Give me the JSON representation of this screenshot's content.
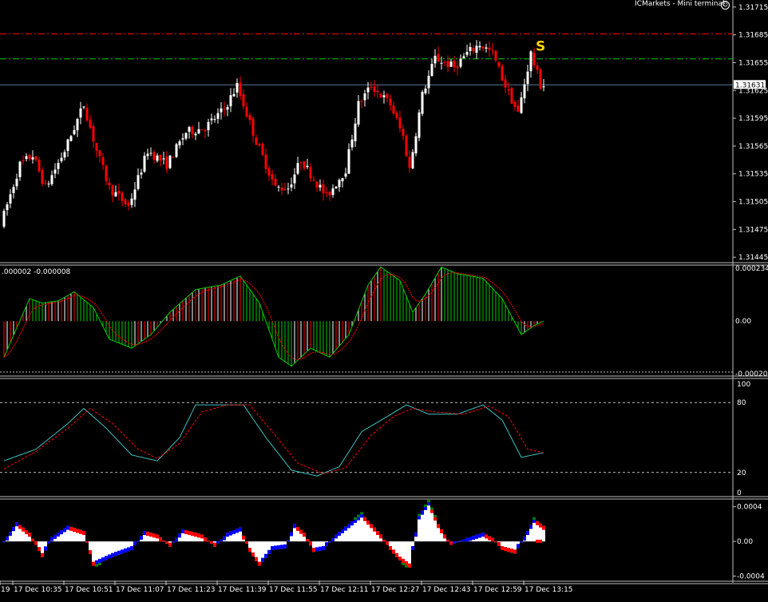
{
  "window": {
    "terminal_label": "ICMarkets - Mini terminal",
    "smiley_glyph": "☺"
  },
  "colors": {
    "background": "#000000",
    "bull": "#ffffff",
    "bear": "#ff0000",
    "red_level": "#ff0000",
    "green_level": "#00cc00",
    "price_line": "#5b7a9c",
    "macd_main": "#00cc00",
    "macd_signal": "#ff0000",
    "stoch_main": "#40c0c0",
    "stoch_signal": "#ff0000",
    "ao_up": "#0000ff",
    "ao_down": "#ff0000",
    "ao_extreme": "#008000",
    "ao_body": "#ffffff",
    "marker": "#ffd700"
  },
  "price_panel": {
    "current_price_label": "1.31631",
    "marker_text": "S",
    "y_ticks": [
      "1.31715",
      "1.31685",
      "1.31655",
      "1.31625",
      "1.31595",
      "1.31565",
      "1.31535",
      "1.31505",
      "1.31475",
      "1.31445"
    ]
  },
  "macd_panel": {
    "info_label": ".000002 -0.000008",
    "y_ticks": [
      "0.000234",
      "0.00",
      "-0.00020"
    ]
  },
  "stoch_panel": {
    "y_ticks": [
      "100",
      "80",
      "20",
      "0"
    ]
  },
  "ao_panel": {
    "y_ticks": [
      "0.0004",
      "0.00",
      "-0.0004"
    ]
  },
  "x_axis": {
    "labels": [
      "19",
      "17 Dec 10:35",
      "17 Dec 10:51",
      "17 Dec 11:07",
      "17 Dec 11:23",
      "17 Dec 11:39",
      "17 Dec 11:55",
      "17 Dec 12:11",
      "17 Dec 12:27",
      "17 Dec 12:43",
      "17 Dec 12:59",
      "17 Dec 13:15"
    ]
  },
  "chart_data": {
    "type": "candlestick",
    "instrument_timeframe": "1-minute",
    "bars_count": 170,
    "price_keypoints": [
      {
        "bar": 0,
        "price": 1.3148
      },
      {
        "bar": 6,
        "price": 1.31545
      },
      {
        "bar": 10,
        "price": 1.31555
      },
      {
        "bar": 14,
        "price": 1.3152
      },
      {
        "bar": 20,
        "price": 1.3156
      },
      {
        "bar": 26,
        "price": 1.3161
      },
      {
        "bar": 30,
        "price": 1.3156
      },
      {
        "bar": 34,
        "price": 1.3152
      },
      {
        "bar": 40,
        "price": 1.315
      },
      {
        "bar": 46,
        "price": 1.3156
      },
      {
        "bar": 52,
        "price": 1.31545
      },
      {
        "bar": 58,
        "price": 1.3158
      },
      {
        "bar": 64,
        "price": 1.31585
      },
      {
        "bar": 70,
        "price": 1.31605
      },
      {
        "bar": 74,
        "price": 1.3163
      },
      {
        "bar": 80,
        "price": 1.3157
      },
      {
        "bar": 86,
        "price": 1.3152
      },
      {
        "bar": 90,
        "price": 1.3152
      },
      {
        "bar": 94,
        "price": 1.3155
      },
      {
        "bar": 98,
        "price": 1.3153
      },
      {
        "bar": 102,
        "price": 1.3151
      },
      {
        "bar": 108,
        "price": 1.3154
      },
      {
        "bar": 112,
        "price": 1.3161
      },
      {
        "bar": 116,
        "price": 1.3163
      },
      {
        "bar": 122,
        "price": 1.3161
      },
      {
        "bar": 126,
        "price": 1.31575
      },
      {
        "bar": 128,
        "price": 1.3154
      },
      {
        "bar": 132,
        "price": 1.3162
      },
      {
        "bar": 136,
        "price": 1.3166
      },
      {
        "bar": 142,
        "price": 1.3165
      },
      {
        "bar": 146,
        "price": 1.31665
      },
      {
        "bar": 150,
        "price": 1.31675
      },
      {
        "bar": 154,
        "price": 1.31665
      },
      {
        "bar": 158,
        "price": 1.3163
      },
      {
        "bar": 162,
        "price": 1.316
      },
      {
        "bar": 166,
        "price": 1.31665
      },
      {
        "bar": 169,
        "price": 1.31631
      }
    ],
    "levels": {
      "red_dashdot": 1.31686,
      "green_dashdot": 1.31659,
      "current": 1.31631
    },
    "price_range": [
      1.3144,
      1.3172
    ],
    "macd_range": [
      -0.00024,
      0.000245
    ],
    "macd_keypoints": [
      {
        "bar": 0,
        "value": -0.00016
      },
      {
        "bar": 8,
        "value": 0.0001
      },
      {
        "bar": 12,
        "value": 8e-05
      },
      {
        "bar": 17,
        "value": 9e-05
      },
      {
        "bar": 22,
        "value": 0.00013
      },
      {
        "bar": 28,
        "value": 6e-05
      },
      {
        "bar": 33,
        "value": -8e-05
      },
      {
        "bar": 40,
        "value": -0.00012
      },
      {
        "bar": 46,
        "value": -6e-05
      },
      {
        "bar": 52,
        "value": 4e-05
      },
      {
        "bar": 60,
        "value": 0.00014
      },
      {
        "bar": 68,
        "value": 0.00016
      },
      {
        "bar": 74,
        "value": 0.0002
      },
      {
        "bar": 80,
        "value": 8e-05
      },
      {
        "bar": 86,
        "value": -0.00016
      },
      {
        "bar": 90,
        "value": -0.0002
      },
      {
        "bar": 96,
        "value": -0.00012
      },
      {
        "bar": 102,
        "value": -0.00016
      },
      {
        "bar": 108,
        "value": -6e-05
      },
      {
        "bar": 114,
        "value": 0.00016
      },
      {
        "bar": 118,
        "value": 0.00024
      },
      {
        "bar": 124,
        "value": 0.00018
      },
      {
        "bar": 128,
        "value": 4e-05
      },
      {
        "bar": 132,
        "value": 0.00012
      },
      {
        "bar": 137,
        "value": 0.00024
      },
      {
        "bar": 142,
        "value": 0.00021
      },
      {
        "bar": 150,
        "value": 0.00019
      },
      {
        "bar": 156,
        "value": 0.0001
      },
      {
        "bar": 162,
        "value": -6e-05
      },
      {
        "bar": 166,
        "value": -2e-05
      },
      {
        "bar": 169,
        "value": 0.0
      }
    ],
    "stoch_range": [
      0,
      100
    ],
    "stoch_levels": [
      80,
      20
    ],
    "stoch_main": [
      {
        "bar": 0,
        "value": 30
      },
      {
        "bar": 10,
        "value": 40
      },
      {
        "bar": 20,
        "value": 62
      },
      {
        "bar": 25,
        "value": 75
      },
      {
        "bar": 32,
        "value": 58
      },
      {
        "bar": 40,
        "value": 35
      },
      {
        "bar": 48,
        "value": 30
      },
      {
        "bar": 55,
        "value": 50
      },
      {
        "bar": 60,
        "value": 78
      },
      {
        "bar": 68,
        "value": 78
      },
      {
        "bar": 75,
        "value": 78
      },
      {
        "bar": 82,
        "value": 50
      },
      {
        "bar": 90,
        "value": 22
      },
      {
        "bar": 98,
        "value": 17
      },
      {
        "bar": 105,
        "value": 25
      },
      {
        "bar": 112,
        "value": 55
      },
      {
        "bar": 120,
        "value": 68
      },
      {
        "bar": 126,
        "value": 78
      },
      {
        "bar": 133,
        "value": 70
      },
      {
        "bar": 142,
        "value": 70
      },
      {
        "bar": 150,
        "value": 78
      },
      {
        "bar": 156,
        "value": 65
      },
      {
        "bar": 162,
        "value": 33
      },
      {
        "bar": 169,
        "value": 37
      }
    ],
    "stoch_signal": [
      {
        "bar": 0,
        "value": 23
      },
      {
        "bar": 10,
        "value": 38
      },
      {
        "bar": 20,
        "value": 58
      },
      {
        "bar": 27,
        "value": 75
      },
      {
        "bar": 34,
        "value": 62
      },
      {
        "bar": 42,
        "value": 40
      },
      {
        "bar": 48,
        "value": 32
      },
      {
        "bar": 55,
        "value": 45
      },
      {
        "bar": 62,
        "value": 72
      },
      {
        "bar": 70,
        "value": 78
      },
      {
        "bar": 77,
        "value": 78
      },
      {
        "bar": 84,
        "value": 55
      },
      {
        "bar": 92,
        "value": 28
      },
      {
        "bar": 100,
        "value": 19
      },
      {
        "bar": 107,
        "value": 24
      },
      {
        "bar": 115,
        "value": 52
      },
      {
        "bar": 122,
        "value": 68
      },
      {
        "bar": 128,
        "value": 75
      },
      {
        "bar": 135,
        "value": 72
      },
      {
        "bar": 144,
        "value": 70
      },
      {
        "bar": 152,
        "value": 77
      },
      {
        "bar": 158,
        "value": 68
      },
      {
        "bar": 164,
        "value": 40
      },
      {
        "bar": 169,
        "value": 37
      }
    ],
    "ao_range": [
      -0.00045,
      0.00048
    ],
    "ao_keypoints": [
      {
        "bar": 0,
        "value": 0.0
      },
      {
        "bar": 4,
        "value": 0.00022
      },
      {
        "bar": 8,
        "value": 0.0001
      },
      {
        "bar": 12,
        "value": -0.00018
      },
      {
        "bar": 15,
        "value": 5e-05
      },
      {
        "bar": 20,
        "value": 0.00018
      },
      {
        "bar": 25,
        "value": 0.00012
      },
      {
        "bar": 28,
        "value": -0.00028
      },
      {
        "bar": 34,
        "value": -0.00018
      },
      {
        "bar": 40,
        "value": -0.0001
      },
      {
        "bar": 44,
        "value": 0.00012
      },
      {
        "bar": 48,
        "value": 8e-05
      },
      {
        "bar": 52,
        "value": -6e-05
      },
      {
        "bar": 56,
        "value": 0.00014
      },
      {
        "bar": 62,
        "value": 8e-05
      },
      {
        "bar": 66,
        "value": -6e-05
      },
      {
        "bar": 70,
        "value": 0.0001
      },
      {
        "bar": 74,
        "value": 0.00016
      },
      {
        "bar": 77,
        "value": -0.00012
      },
      {
        "bar": 80,
        "value": -0.00028
      },
      {
        "bar": 84,
        "value": -0.0001
      },
      {
        "bar": 88,
        "value": -8e-05
      },
      {
        "bar": 91,
        "value": 0.0002
      },
      {
        "bar": 94,
        "value": 0.0001
      },
      {
        "bar": 97,
        "value": -0.00012
      },
      {
        "bar": 100,
        "value": -0.0001
      },
      {
        "bar": 104,
        "value": 8e-05
      },
      {
        "bar": 108,
        "value": 0.0002
      },
      {
        "bar": 112,
        "value": 0.00032
      },
      {
        "bar": 115,
        "value": 0.0002
      },
      {
        "bar": 118,
        "value": 8e-05
      },
      {
        "bar": 121,
        "value": -0.0001
      },
      {
        "bar": 124,
        "value": -0.00022
      },
      {
        "bar": 127,
        "value": -0.0003
      },
      {
        "bar": 130,
        "value": 0.0003
      },
      {
        "bar": 133,
        "value": 0.00046
      },
      {
        "bar": 136,
        "value": 0.0002
      },
      {
        "bar": 140,
        "value": -4e-05
      },
      {
        "bar": 145,
        "value": 4e-05
      },
      {
        "bar": 150,
        "value": 0.0001
      },
      {
        "bar": 153,
        "value": 4e-05
      },
      {
        "bar": 156,
        "value": -0.0001
      },
      {
        "bar": 160,
        "value": -0.00014
      },
      {
        "bar": 164,
        "value": 0.00012
      },
      {
        "bar": 166,
        "value": 0.00026
      },
      {
        "bar": 169,
        "value": 0.00018
      }
    ]
  }
}
